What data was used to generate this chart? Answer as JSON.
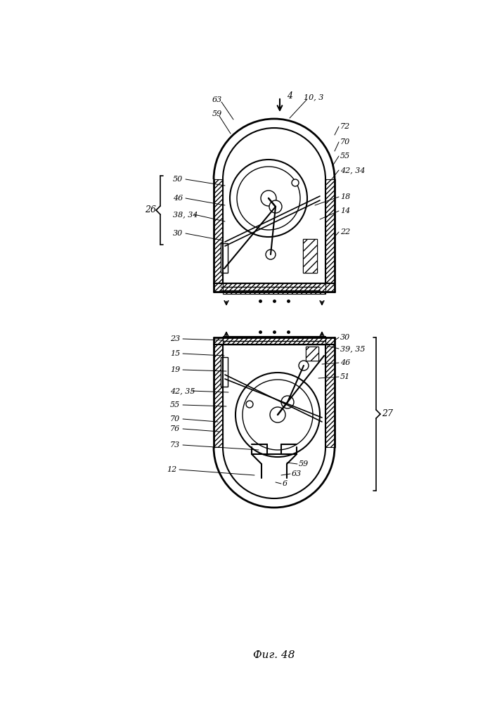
{
  "title": "Фиг. 48",
  "bg_color": "#ffffff",
  "line_color": "#000000",
  "fig_width": 7.07,
  "fig_height": 10.0,
  "dpi": 100
}
